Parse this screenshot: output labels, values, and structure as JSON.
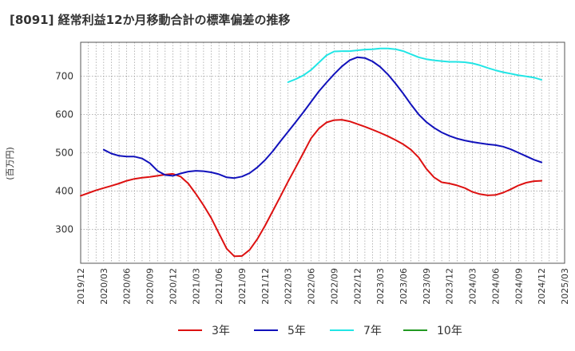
{
  "chart_data": {
    "type": "line",
    "title": "[8091]  経常利益12か月移動合計の標準偏差の推移",
    "ylabel": "(百万円)",
    "xlabel": "",
    "ylim": [
      212,
      788
    ],
    "yticks": [
      300,
      400,
      500,
      600,
      700
    ],
    "xlim": [
      "2019-12",
      "2025-03"
    ],
    "xticks": [
      "2019/12",
      "2020/03",
      "2020/06",
      "2020/09",
      "2020/12",
      "2021/03",
      "2021/06",
      "2021/09",
      "2021/12",
      "2022/03",
      "2022/06",
      "2022/09",
      "2022/12",
      "2023/03",
      "2023/06",
      "2023/09",
      "2023/12",
      "2024/03",
      "2024/06",
      "2024/09",
      "2024/12",
      "2025/03"
    ],
    "grid": true,
    "legend_position": "bottom",
    "series": [
      {
        "name": "3年",
        "color": "#dd1111",
        "x": [
          "2019-12",
          "2020-01",
          "2020-02",
          "2020-03",
          "2020-04",
          "2020-05",
          "2020-06",
          "2020-07",
          "2020-08",
          "2020-09",
          "2020-10",
          "2020-11",
          "2020-12",
          "2021-01",
          "2021-02",
          "2021-03",
          "2021-04",
          "2021-05",
          "2021-06",
          "2021-07",
          "2021-08",
          "2021-09",
          "2021-10",
          "2021-11",
          "2021-12",
          "2022-01",
          "2022-02",
          "2022-03",
          "2022-04",
          "2022-05",
          "2022-06",
          "2022-07",
          "2022-08",
          "2022-09",
          "2022-10",
          "2022-11",
          "2022-12",
          "2023-01",
          "2023-02",
          "2023-03",
          "2023-04",
          "2023-05",
          "2023-06",
          "2023-07",
          "2023-08",
          "2023-09",
          "2023-10",
          "2023-11",
          "2023-12",
          "2024-01",
          "2024-02",
          "2024-03",
          "2024-04",
          "2024-05",
          "2024-06",
          "2024-07",
          "2024-08",
          "2024-09",
          "2024-10",
          "2024-11",
          "2024-12"
        ],
        "y": [
          388,
          395,
          402,
          408,
          414,
          420,
          427,
          432,
          435,
          437,
          440,
          443,
          445,
          438,
          420,
          393,
          363,
          330,
          290,
          250,
          230,
          231,
          247,
          275,
          310,
          348,
          386,
          425,
          462,
          500,
          538,
          563,
          579,
          585,
          586,
          582,
          575,
          568,
          560,
          552,
          543,
          533,
          522,
          508,
          488,
          458,
          436,
          423,
          420,
          415,
          408,
          398,
          392,
          389,
          390,
          396,
          405,
          415,
          422,
          426,
          427
        ]
      },
      {
        "name": "5年",
        "color": "#1111bb",
        "x": [
          "2020-03",
          "2020-04",
          "2020-05",
          "2020-06",
          "2020-07",
          "2020-08",
          "2020-09",
          "2020-10",
          "2020-11",
          "2020-12",
          "2021-01",
          "2021-02",
          "2021-03",
          "2021-04",
          "2021-05",
          "2021-06",
          "2021-07",
          "2021-08",
          "2021-09",
          "2021-10",
          "2021-11",
          "2021-12",
          "2022-01",
          "2022-02",
          "2022-03",
          "2022-04",
          "2022-05",
          "2022-06",
          "2022-07",
          "2022-08",
          "2022-09",
          "2022-10",
          "2022-11",
          "2022-12",
          "2023-01",
          "2023-02",
          "2023-03",
          "2023-04",
          "2023-05",
          "2023-06",
          "2023-07",
          "2023-08",
          "2023-09",
          "2023-10",
          "2023-11",
          "2023-12",
          "2024-01",
          "2024-02",
          "2024-03",
          "2024-04",
          "2024-05",
          "2024-06",
          "2024-07",
          "2024-08",
          "2024-09",
          "2024-10",
          "2024-11",
          "2024-12"
        ],
        "y": [
          508,
          498,
          492,
          490,
          490,
          485,
          473,
          453,
          442,
          440,
          446,
          451,
          453,
          452,
          449,
          444,
          436,
          434,
          438,
          447,
          462,
          481,
          504,
          530,
          555,
          580,
          606,
          633,
          660,
          683,
          705,
          725,
          741,
          749,
          747,
          738,
          724,
          704,
          680,
          654,
          626,
          600,
          580,
          565,
          553,
          544,
          537,
          532,
          528,
          525,
          522,
          520,
          516,
          509,
          500,
          491,
          482,
          475
        ]
      },
      {
        "name": "7年",
        "color": "#22e5e5",
        "x": [
          "2022-03",
          "2022-04",
          "2022-05",
          "2022-06",
          "2022-07",
          "2022-08",
          "2022-09",
          "2022-10",
          "2022-11",
          "2022-12",
          "2023-01",
          "2023-02",
          "2023-03",
          "2023-04",
          "2023-05",
          "2023-06",
          "2023-07",
          "2023-08",
          "2023-09",
          "2023-10",
          "2023-11",
          "2023-12",
          "2024-01",
          "2024-02",
          "2024-03",
          "2024-04",
          "2024-05",
          "2024-06",
          "2024-07",
          "2024-08",
          "2024-09",
          "2024-10",
          "2024-11",
          "2024-12"
        ],
        "y": [
          684,
          692,
          702,
          716,
          735,
          754,
          764,
          765,
          765,
          767,
          769,
          770,
          772,
          772,
          770,
          765,
          757,
          749,
          744,
          741,
          739,
          737,
          737,
          736,
          733,
          728,
          721,
          715,
          710,
          706,
          702,
          699,
          696,
          690
        ]
      },
      {
        "name": "10年",
        "color": "#229922",
        "x": [],
        "y": []
      }
    ]
  }
}
